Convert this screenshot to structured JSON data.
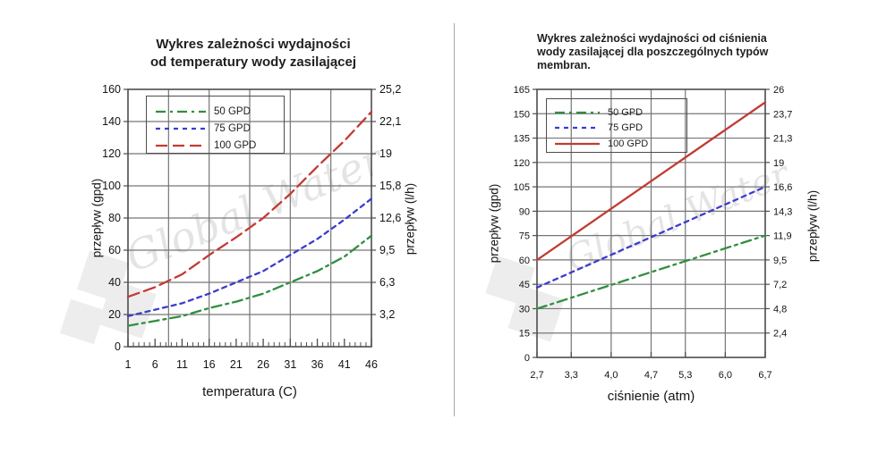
{
  "page": {
    "background": "#ffffff",
    "divider_color": "#a9a9a9",
    "watermark_text": "Global Water"
  },
  "chart_data": [
    {
      "type": "line",
      "title_lines": [
        "Wykres zależności wydajności",
        "od temperatury wody zasilającej"
      ],
      "xlabel": "temperatura (C)",
      "ylabel_left": "przepływ (gpd)",
      "ylabel_right": "przepływ (l/h)",
      "x_range": [
        1,
        46
      ],
      "y_range": [
        0,
        160
      ],
      "grid": true,
      "x_gridlines": [
        8.5,
        16,
        23.5,
        31,
        38.5
      ],
      "x_minor_step": 1,
      "x_ticks": [
        {
          "v": 1,
          "label": "1"
        },
        {
          "v": 6,
          "label": "6"
        },
        {
          "v": 11,
          "label": "11"
        },
        {
          "v": 16,
          "label": "16"
        },
        {
          "v": 21,
          "label": "21"
        },
        {
          "v": 26,
          "label": "26"
        },
        {
          "v": 31,
          "label": "31"
        },
        {
          "v": 36,
          "label": "36"
        },
        {
          "v": 41,
          "label": "41"
        },
        {
          "v": 46,
          "label": "46"
        }
      ],
      "left_ticks": [
        {
          "v": 160,
          "label": "160"
        },
        {
          "v": 140,
          "label": "140"
        },
        {
          "v": 120,
          "label": "120"
        },
        {
          "v": 100,
          "label": "100"
        },
        {
          "v": 80,
          "label": "80"
        },
        {
          "v": 60,
          "label": "60"
        },
        {
          "v": 40,
          "label": "40"
        },
        {
          "v": 20,
          "label": "20"
        },
        {
          "v": 0,
          "label": "0"
        }
      ],
      "right_ticks": [
        {
          "v": 160,
          "label": "25,2"
        },
        {
          "v": 140,
          "label": "22,1"
        },
        {
          "v": 120,
          "label": "19"
        },
        {
          "v": 100,
          "label": "15,8"
        },
        {
          "v": 80,
          "label": "12,6"
        },
        {
          "v": 60,
          "label": "9,5"
        },
        {
          "v": 40,
          "label": "6,3"
        },
        {
          "v": 20,
          "label": "3,2"
        }
      ],
      "series": [
        {
          "name": "50 GPD",
          "color": "#2f8f3f",
          "dash": "11,5,3,5",
          "points": [
            [
              1,
              13
            ],
            [
              6,
              16
            ],
            [
              11,
              19
            ],
            [
              16,
              24
            ],
            [
              21,
              28
            ],
            [
              26,
              33
            ],
            [
              31,
              40
            ],
            [
              36,
              47
            ],
            [
              41,
              56
            ],
            [
              46,
              69
            ]
          ]
        },
        {
          "name": "75 GPD",
          "color": "#3c3ccd",
          "dash": "5,5",
          "points": [
            [
              1,
              19
            ],
            [
              6,
              23
            ],
            [
              11,
              27
            ],
            [
              16,
              33
            ],
            [
              21,
              40
            ],
            [
              26,
              47
            ],
            [
              31,
              57
            ],
            [
              36,
              67
            ],
            [
              41,
              79
            ],
            [
              46,
              92
            ]
          ]
        },
        {
          "name": "100 GPD",
          "color": "#c13b34",
          "dash": "13,6",
          "points": [
            [
              1,
              31
            ],
            [
              6,
              37
            ],
            [
              11,
              45
            ],
            [
              16,
              57
            ],
            [
              21,
              68
            ],
            [
              26,
              80
            ],
            [
              31,
              95
            ],
            [
              36,
              112
            ],
            [
              41,
              128
            ],
            [
              46,
              146
            ]
          ]
        }
      ]
    },
    {
      "type": "line",
      "title_lines": [
        "Wykres zależności wydajności od ciśnienia",
        "wody zasilającej dla poszczególnych typów",
        "membran."
      ],
      "xlabel": "ciśnienie (atm)",
      "ylabel_left": "przepływ (gpd)",
      "ylabel_right": "przepływ (l/h)",
      "x_range": [
        2.7,
        6.7
      ],
      "y_range": [
        0,
        165
      ],
      "grid": true,
      "x_gridlines": [
        3.3,
        4.0,
        4.7,
        5.3,
        6.0
      ],
      "x_minor_step": null,
      "x_ticks": [
        {
          "v": 2.7,
          "label": "2,7"
        },
        {
          "v": 3.3,
          "label": "3,3"
        },
        {
          "v": 4.0,
          "label": "4,0"
        },
        {
          "v": 4.7,
          "label": "4,7"
        },
        {
          "v": 5.3,
          "label": "5,3"
        },
        {
          "v": 6.0,
          "label": "6,0"
        },
        {
          "v": 6.7,
          "label": "6,7"
        }
      ],
      "left_ticks": [
        {
          "v": 165,
          "label": "165"
        },
        {
          "v": 150,
          "label": "150"
        },
        {
          "v": 135,
          "label": "135"
        },
        {
          "v": 120,
          "label": "120"
        },
        {
          "v": 105,
          "label": "105"
        },
        {
          "v": 90,
          "label": "90"
        },
        {
          "v": 75,
          "label": "75"
        },
        {
          "v": 60,
          "label": "60"
        },
        {
          "v": 45,
          "label": "45"
        },
        {
          "v": 30,
          "label": "30"
        },
        {
          "v": 15,
          "label": "15"
        },
        {
          "v": 0,
          "label": "0"
        }
      ],
      "right_ticks": [
        {
          "v": 165,
          "label": "26"
        },
        {
          "v": 150,
          "label": "23,7"
        },
        {
          "v": 135,
          "label": "21,3"
        },
        {
          "v": 120,
          "label": "19"
        },
        {
          "v": 105,
          "label": "16,6"
        },
        {
          "v": 90,
          "label": "14,3"
        },
        {
          "v": 75,
          "label": "11,9"
        },
        {
          "v": 60,
          "label": "9,5"
        },
        {
          "v": 45,
          "label": "7,2"
        },
        {
          "v": 30,
          "label": "4,8"
        },
        {
          "v": 15,
          "label": "2,4"
        }
      ],
      "series": [
        {
          "name": "50 GPD",
          "color": "#2f8f3f",
          "dash": "11,5,3,5",
          "points": [
            [
              2.7,
              30
            ],
            [
              6.7,
              75
            ]
          ]
        },
        {
          "name": "75 GPD",
          "color": "#3c3ccd",
          "dash": "5,5",
          "points": [
            [
              2.7,
              43
            ],
            [
              6.7,
              105
            ]
          ]
        },
        {
          "name": "100 GPD",
          "color": "#c13b34",
          "dash": "",
          "points": [
            [
              2.7,
              60
            ],
            [
              6.7,
              157
            ]
          ]
        }
      ]
    }
  ]
}
